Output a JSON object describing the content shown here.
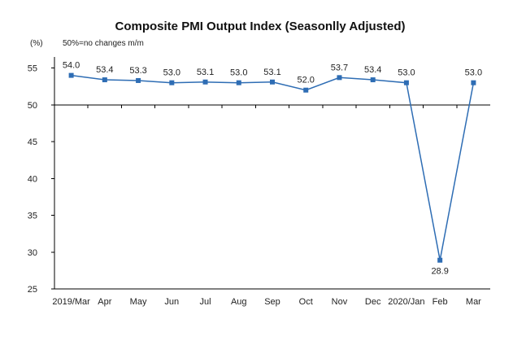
{
  "chart_data": {
    "type": "line",
    "title": "Composite PMI Output Index (Seasonlly Adjusted)",
    "unit_label": "(%)",
    "note": "50%=no changes  m/m",
    "categories": [
      "2019/Mar",
      "Apr",
      "May",
      "Jun",
      "Jul",
      "Aug",
      "Sep",
      "Oct",
      "Nov",
      "Dec",
      "2020/Jan",
      "Feb",
      "Mar"
    ],
    "series": [
      {
        "values": [
          54.0,
          53.4,
          53.3,
          53.0,
          53.1,
          53.0,
          53.1,
          52.0,
          53.7,
          53.4,
          53.0,
          28.9,
          53.0
        ],
        "data_labels": [
          "54.0",
          "53.4",
          "53.3",
          "53.0",
          "53.1",
          "53.0",
          "53.1",
          "52.0",
          "53.7",
          "53.4",
          "53.0",
          "28.9",
          "53.0"
        ],
        "color": "#2E6DB4"
      }
    ],
    "ylim": [
      25,
      55
    ],
    "yticks": [
      "25",
      "30",
      "35",
      "40",
      "45",
      "50",
      "55"
    ],
    "reference_line": 50,
    "grid": false
  }
}
